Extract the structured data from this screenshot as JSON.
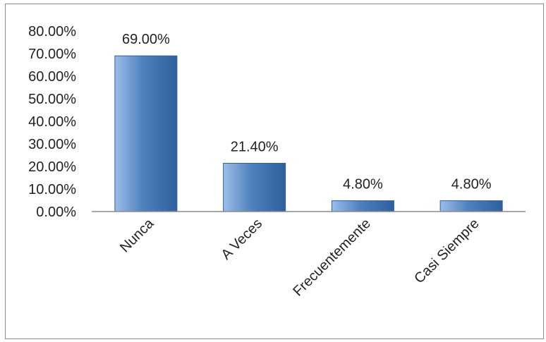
{
  "chart_data": {
    "type": "bar",
    "categories": [
      "Nunca",
      "A Veces",
      "Frecuentemente",
      "Casi Siempre"
    ],
    "values": [
      69.0,
      21.4,
      4.8,
      4.8
    ],
    "data_labels": [
      "69.00%",
      "21.40%",
      "4.80%",
      "4.80%"
    ],
    "y_ticks": [
      "0.00%",
      "10.00%",
      "20.00%",
      "30.00%",
      "40.00%",
      "50.00%",
      "60.00%",
      "70.00%",
      "80.00%"
    ],
    "ylim": [
      0,
      80
    ],
    "title": "",
    "xlabel": "",
    "ylabel": "",
    "grid": false,
    "legend": "none",
    "bar_color": "#4f81bd",
    "bar_color_light": "#9dbde8",
    "bar_color_dark": "#2e5f9e"
  }
}
